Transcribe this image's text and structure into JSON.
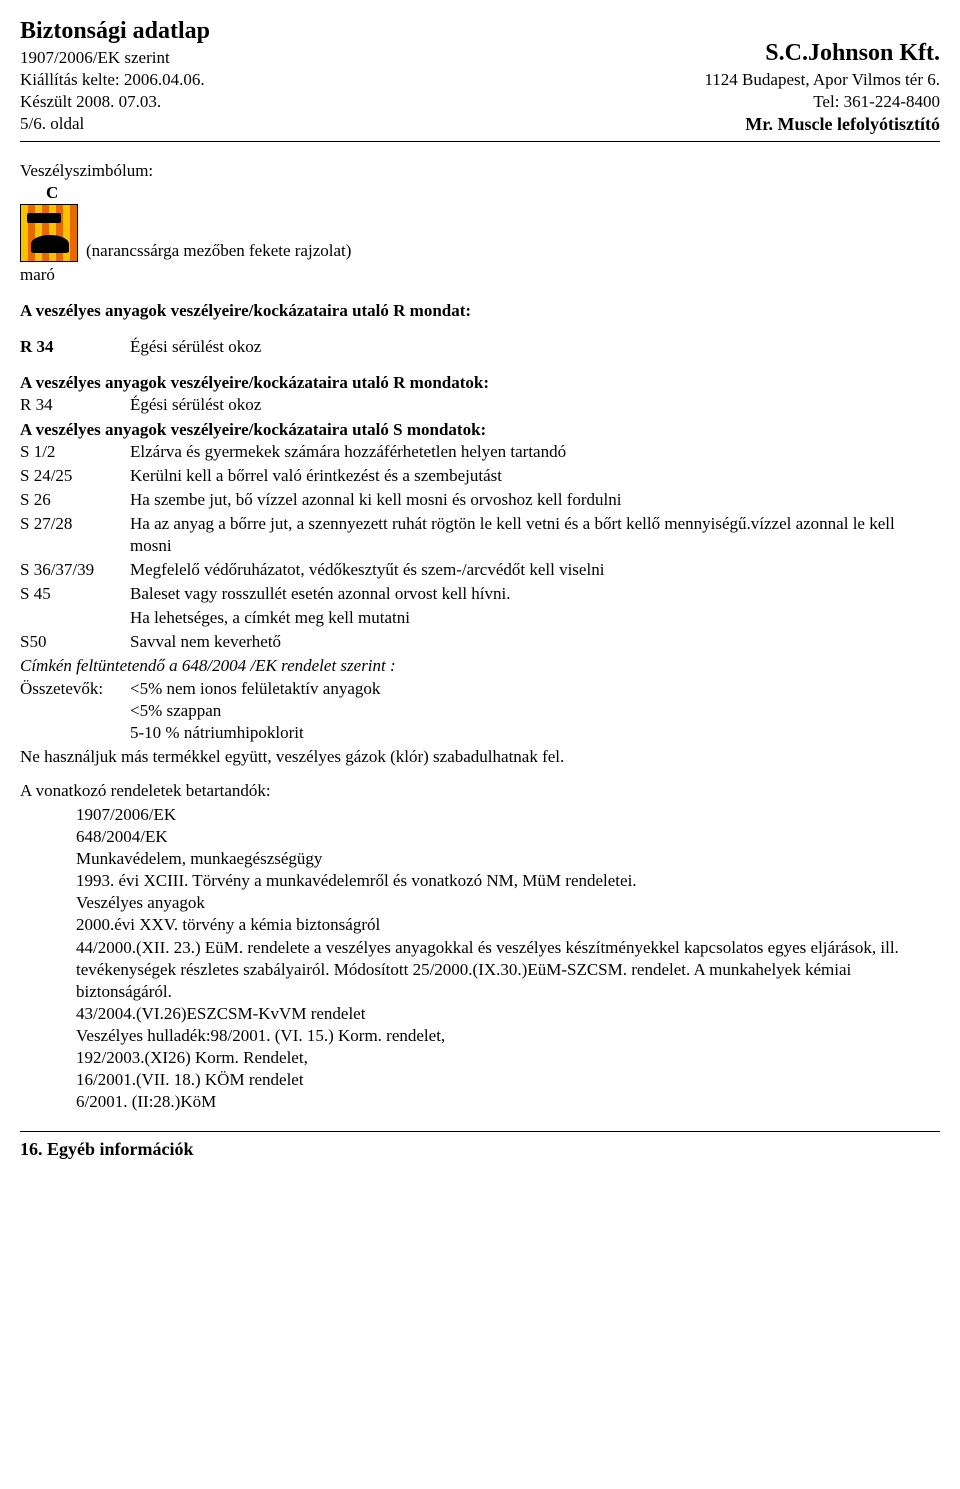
{
  "header": {
    "title": "Biztonsági adatlap",
    "reg": "1907/2006/EK szerint",
    "issued": "Kiállítás kelte: 2006.04.06.",
    "prepared": "Készült 2008. 07.03.",
    "page": "5/6. oldal",
    "brand": "S.C.Johnson Kft.",
    "address": "1124 Budapest, Apor Vilmos tér 6.",
    "tel": "Tel: 361-224-8400",
    "product": "Mr. Muscle lefolyótisztító"
  },
  "symbol": {
    "heading": "Veszélyszimbólum:",
    "letter": "C",
    "note": "(narancssárga mezőben fekete rajzolat)",
    "maro": "maró"
  },
  "rHeading": "A veszélyes anyagok veszélyeire/kockázataira utaló R mondat:",
  "r34": {
    "code": "R 34",
    "text": "Égési sérülést okoz"
  },
  "rListHeading": "A veszélyes anyagok veszélyeire/kockázataira utaló R mondatok:",
  "rList": [
    {
      "code": "R 34",
      "text": "Égési sérülést okoz"
    }
  ],
  "sHeading": "A veszélyes anyagok veszélyeire/kockázataira utaló S mondatok:",
  "sList": [
    {
      "code": "S 1/2",
      "text": "Elzárva és gyermekek számára hozzáférhetetlen helyen tartandó"
    },
    {
      "code": "S 24/25",
      "text": "Kerülni kell a bőrrel való érintkezést és a szembejutást"
    },
    {
      "code": "S 26",
      "text": "Ha szembe jut, bő vízzel azonnal ki kell mosni és orvoshoz kell fordulni"
    },
    {
      "code": "S 27/28",
      "text": "Ha az anyag a bőrre jut, a szennyezett  ruhát  rögtön le kell vetni és a bőrt kellő mennyiségű.vízzel azonnal le kell mosni"
    },
    {
      "code": "S 36/37/39",
      "text": "Megfelelő védőruházatot, védőkesztyűt és szem-/arcvédőt kell viselni"
    },
    {
      "code": "S 45",
      "text": "Baleset vagy rosszullét esetén azonnal orvost kell hívni."
    },
    {
      "code": "",
      "text": "Ha lehetséges, a címkét meg kell mutatni"
    },
    {
      "code": "S50",
      "text": "Savval nem keverhető"
    }
  ],
  "labelHeading": "Címkén feltüntetendő a 648/2004 /EK rendelet szerint :",
  "components": {
    "label": "Összetevők:",
    "lines": [
      "<5% nem ionos felületaktív anyagok",
      "<5% szappan",
      " 5-10 % nátriumhipoklorit"
    ]
  },
  "warning": "Ne használjuk más termékkel együtt, veszélyes gázok (klór) szabadulhatnak fel.",
  "regHeading": "A  vonatkozó rendeletek betartandók:",
  "regLines": [
    "1907/2006/EK",
    "648/2004/EK",
    "Munkavédelem, munkaegészségügy",
    "1993. évi XCIII. Törvény a munkavédelemről és vonatkozó NM, MüM rendeletei.",
    "Veszélyes anyagok",
    "2000.évi XXV. törvény a kémia biztonságról",
    "44/2000.(XII. 23.) EüM. rendelete a veszélyes anyagokkal és veszélyes készítményekkel kapcsolatos egyes eljárások, ill. tevékenységek részletes szabályairól. Módosított 25/2000.(IX.30.)EüM-SZCSM. rendelet. A munkahelyek kémiai biztonságáról.",
    "43/2004.(VI.26)ESZCSM-KvVM rendelet",
    "Veszélyes hulladék:98/2001. (VI. 15.) Korm. rendelet,",
    "192/2003.(XI26) Korm. Rendelet,",
    "16/2001.(VII. 18.) KÖM rendelet",
    "6/2001. (II:28.)KöM"
  ],
  "footerSection": "16. Egyéb információk"
}
